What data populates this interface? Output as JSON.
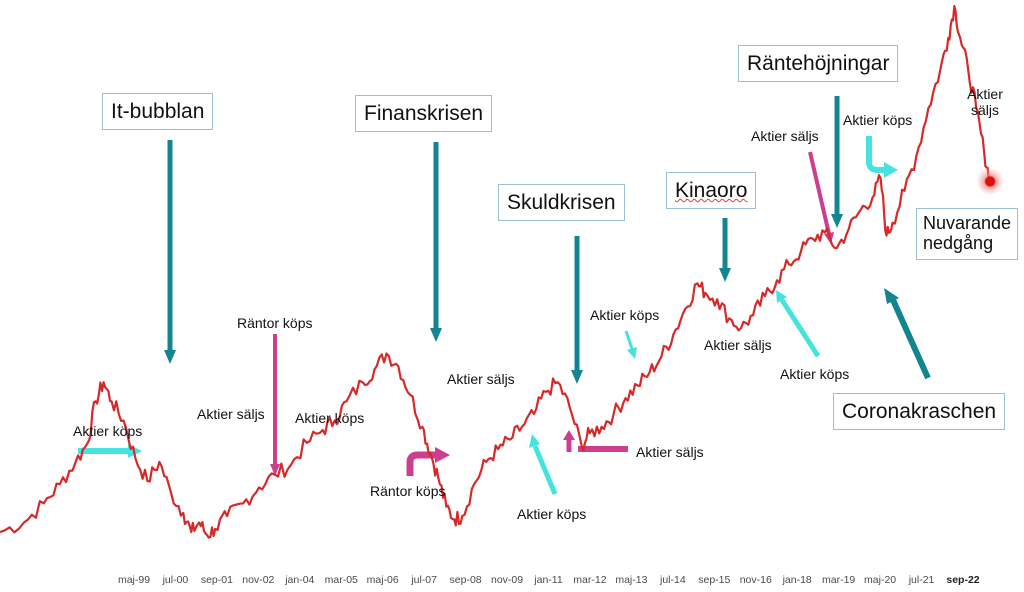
{
  "chart_data": {
    "type": "line",
    "title": "",
    "xlabel": "",
    "ylabel": "",
    "x_ticks": [
      "maj-99",
      "jul-00",
      "sep-01",
      "nov-02",
      "jan-04",
      "mar-05",
      "maj-06",
      "jul-07",
      "sep-08",
      "nov-09",
      "jan-11",
      "mar-12",
      "maj-13",
      "jul-14",
      "sep-15",
      "nov-16",
      "jan-18",
      "mar-19",
      "maj-20",
      "jul-21",
      "sep-22"
    ],
    "series": [
      {
        "color": "#d62a2a",
        "points": [
          [
            1997.9,
            5
          ],
          [
            1998.5,
            8
          ],
          [
            1999.0,
            14
          ],
          [
            1999.4,
            20
          ],
          [
            1999.8,
            27
          ],
          [
            2000.1,
            33
          ],
          [
            2000.3,
            46
          ],
          [
            2000.5,
            52
          ],
          [
            2000.7,
            46
          ],
          [
            2001.0,
            40
          ],
          [
            2001.3,
            28
          ],
          [
            2001.6,
            21
          ],
          [
            2001.9,
            27
          ],
          [
            2002.2,
            17
          ],
          [
            2002.5,
            11
          ],
          [
            2002.7,
            5
          ],
          [
            2002.9,
            8
          ],
          [
            2003.1,
            4
          ],
          [
            2003.3,
            6
          ],
          [
            2003.6,
            10
          ],
          [
            2004.0,
            14
          ],
          [
            2004.4,
            19
          ],
          [
            2004.8,
            23
          ],
          [
            2005.2,
            26
          ],
          [
            2005.6,
            33
          ],
          [
            2006.0,
            37
          ],
          [
            2006.3,
            40
          ],
          [
            2006.6,
            46
          ],
          [
            2007.0,
            52
          ],
          [
            2007.3,
            56
          ],
          [
            2007.6,
            61
          ],
          [
            2007.9,
            57
          ],
          [
            2008.2,
            48
          ],
          [
            2008.5,
            38
          ],
          [
            2008.7,
            30
          ],
          [
            2008.9,
            22
          ],
          [
            2009.1,
            13
          ],
          [
            2009.3,
            9
          ],
          [
            2009.5,
            10
          ],
          [
            2009.8,
            20
          ],
          [
            2010.1,
            27
          ],
          [
            2010.4,
            31
          ],
          [
            2010.7,
            34
          ],
          [
            2011.0,
            38
          ],
          [
            2011.3,
            42
          ],
          [
            2011.6,
            49
          ],
          [
            2011.9,
            52
          ],
          [
            2012.2,
            44
          ],
          [
            2012.5,
            32
          ],
          [
            2012.7,
            36
          ],
          [
            2013.0,
            38
          ],
          [
            2013.3,
            42
          ],
          [
            2013.6,
            47
          ],
          [
            2013.9,
            51
          ],
          [
            2014.2,
            55
          ],
          [
            2014.5,
            60
          ],
          [
            2014.8,
            67
          ],
          [
            2015.1,
            75
          ],
          [
            2015.4,
            83
          ],
          [
            2015.6,
            80
          ],
          [
            2015.9,
            78
          ],
          [
            2016.2,
            72
          ],
          [
            2016.5,
            69
          ],
          [
            2016.8,
            73
          ],
          [
            2017.1,
            79
          ],
          [
            2017.4,
            84
          ],
          [
            2017.7,
            89
          ],
          [
            2018.0,
            93
          ],
          [
            2018.3,
            97
          ],
          [
            2018.6,
            99
          ],
          [
            2018.9,
            94
          ],
          [
            2019.2,
            100
          ],
          [
            2019.5,
            106
          ],
          [
            2019.8,
            110
          ],
          [
            2020.0,
            116
          ],
          [
            2020.15,
            98
          ],
          [
            2020.3,
            102
          ],
          [
            2020.6,
            112
          ],
          [
            2020.9,
            123
          ],
          [
            2021.2,
            138
          ],
          [
            2021.5,
            150
          ],
          [
            2021.7,
            160
          ],
          [
            2021.85,
            170
          ],
          [
            2022.0,
            160
          ],
          [
            2022.2,
            150
          ],
          [
            2022.4,
            138
          ],
          [
            2022.6,
            124
          ],
          [
            2022.75,
            115
          ]
        ]
      }
    ],
    "xlim": [
      1997.9,
      2023.6
    ],
    "ylim": [
      0,
      170
    ],
    "grid": false,
    "legend": "none",
    "current_point": [
      2022.75,
      115
    ]
  },
  "labels": {
    "it_bubble": "It-bubblan",
    "finance_crisis": "Finanskrisen",
    "debt_crisis": "Skuldkrisen",
    "china": "Kinaoro",
    "rate_hikes": "Räntehöjningar",
    "current_decline": "Nuvarande nedgång",
    "corona": "Coronakraschen",
    "buy_1": "Aktier köps",
    "sell_1": "Aktier säljs",
    "rates_buy_1": "Räntor köps",
    "buy_2": "Aktier köps",
    "sell_2": "Aktier säljs",
    "rates_buy_2": "Räntor köps",
    "buy_3": "Aktier köps",
    "buy_4": "Aktier köps",
    "sell_3": "Aktier säljs",
    "sell_4": "Aktier säljs",
    "buy_5": "Aktier köps",
    "sell_5": "Aktier säljs",
    "buy_6": "Aktier köps",
    "sell_6": "Aktier säljs"
  },
  "colors": {
    "line": "#d62a2a",
    "event_arrow": "#138591",
    "buy_arrow": "#45e3e0",
    "rate_arrow": "#cc3f8f"
  }
}
